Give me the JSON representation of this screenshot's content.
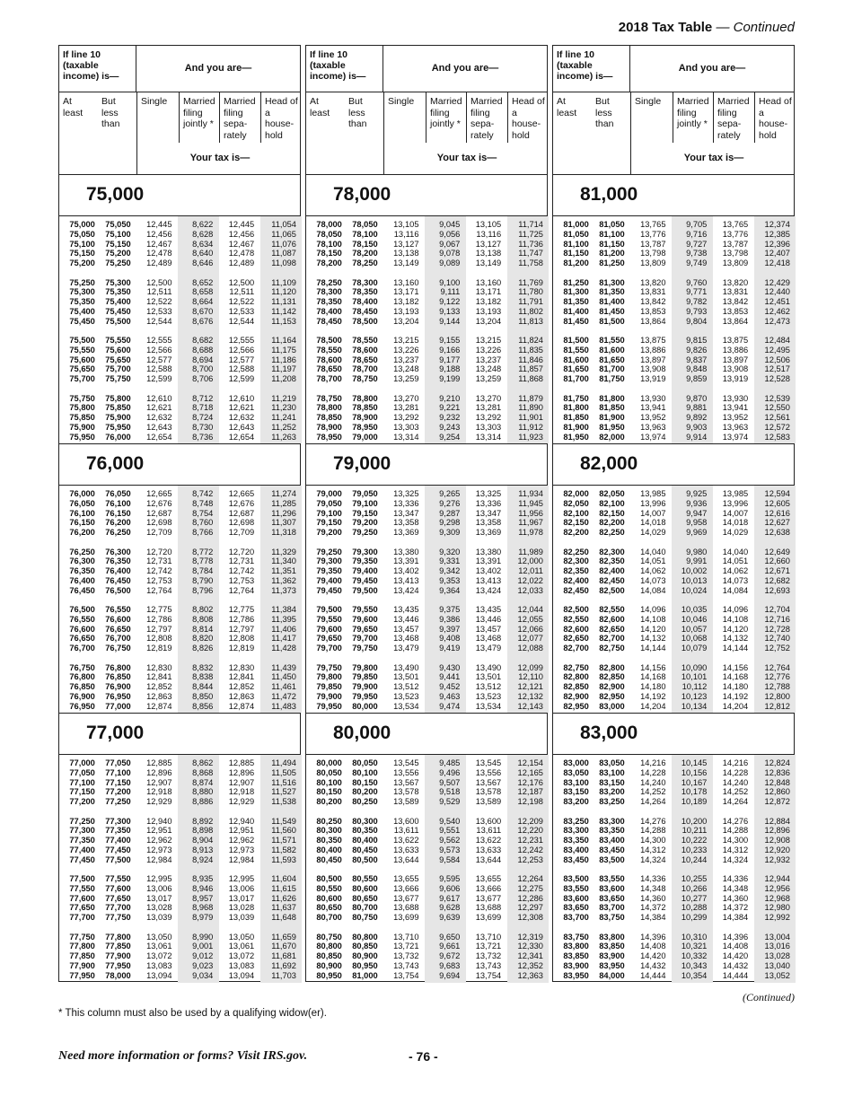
{
  "header": {
    "title": "2018 Tax Table",
    "continued": "— Continued"
  },
  "table_header": {
    "income_label": "If line 10 (taxable income) is—",
    "and_you_are": "And you are—",
    "columns": [
      "At least",
      "But less than",
      "Single",
      "Married filing jointly *",
      "Married filing sepa- rately",
      "Head of a house- hold"
    ],
    "your_tax_is": "Your tax is—"
  },
  "shaded_columns": [
    "Married filing jointly",
    "Head of a household"
  ],
  "shade_color": "#e6e6e6",
  "blocks": [
    {
      "heading": "75,000",
      "single": [
        12445,
        12456,
        12467,
        12478,
        12489,
        12500,
        12511,
        12522,
        12533,
        12544,
        12555,
        12566,
        12577,
        12588,
        12599,
        12610,
        12621,
        12632,
        12643,
        12654
      ],
      "mfj": [
        8622,
        8628,
        8634,
        8640,
        8646,
        8652,
        8658,
        8664,
        8670,
        8676,
        8682,
        8688,
        8694,
        8700,
        8706,
        8712,
        8718,
        8724,
        8730,
        8736
      ],
      "mfs": [
        12445,
        12456,
        12467,
        12478,
        12489,
        12500,
        12511,
        12522,
        12533,
        12544,
        12555,
        12566,
        12577,
        12588,
        12599,
        12610,
        12621,
        12632,
        12643,
        12654
      ],
      "hoh": [
        11054,
        11065,
        11076,
        11087,
        11098,
        11109,
        11120,
        11131,
        11142,
        11153,
        11164,
        11175,
        11186,
        11197,
        11208,
        11219,
        11230,
        11241,
        11252,
        11263
      ]
    },
    {
      "heading": "76,000",
      "single": [
        12665,
        12676,
        12687,
        12698,
        12709,
        12720,
        12731,
        12742,
        12753,
        12764,
        12775,
        12786,
        12797,
        12808,
        12819,
        12830,
        12841,
        12852,
        12863,
        12874
      ],
      "mfj": [
        8742,
        8748,
        8754,
        8760,
        8766,
        8772,
        8778,
        8784,
        8790,
        8796,
        8802,
        8808,
        8814,
        8820,
        8826,
        8832,
        8838,
        8844,
        8850,
        8856
      ],
      "mfs": [
        12665,
        12676,
        12687,
        12698,
        12709,
        12720,
        12731,
        12742,
        12753,
        12764,
        12775,
        12786,
        12797,
        12808,
        12819,
        12830,
        12841,
        12852,
        12863,
        12874
      ],
      "hoh": [
        11274,
        11285,
        11296,
        11307,
        11318,
        11329,
        11340,
        11351,
        11362,
        11373,
        11384,
        11395,
        11406,
        11417,
        11428,
        11439,
        11450,
        11461,
        11472,
        11483
      ]
    },
    {
      "heading": "77,000",
      "single": [
        12885,
        12896,
        12907,
        12918,
        12929,
        12940,
        12951,
        12962,
        12973,
        12984,
        12995,
        13006,
        13017,
        13028,
        13039,
        13050,
        13061,
        13072,
        13083,
        13094
      ],
      "mfj": [
        8862,
        8868,
        8874,
        8880,
        8886,
        8892,
        8898,
        8904,
        8913,
        8924,
        8935,
        8946,
        8957,
        8968,
        8979,
        8990,
        9001,
        9012,
        9023,
        9034
      ],
      "mfs": [
        12885,
        12896,
        12907,
        12918,
        12929,
        12940,
        12951,
        12962,
        12973,
        12984,
        12995,
        13006,
        13017,
        13028,
        13039,
        13050,
        13061,
        13072,
        13083,
        13094
      ],
      "hoh": [
        11494,
        11505,
        11516,
        11527,
        11538,
        11549,
        11560,
        11571,
        11582,
        11593,
        11604,
        11615,
        11626,
        11637,
        11648,
        11659,
        11670,
        11681,
        11692,
        11703
      ]
    },
    {
      "heading": "78,000",
      "single": [
        13105,
        13116,
        13127,
        13138,
        13149,
        13160,
        13171,
        13182,
        13193,
        13204,
        13215,
        13226,
        13237,
        13248,
        13259,
        13270,
        13281,
        13292,
        13303,
        13314
      ],
      "mfj": [
        9045,
        9056,
        9067,
        9078,
        9089,
        9100,
        9111,
        9122,
        9133,
        9144,
        9155,
        9166,
        9177,
        9188,
        9199,
        9210,
        9221,
        9232,
        9243,
        9254
      ],
      "mfs": [
        13105,
        13116,
        13127,
        13138,
        13149,
        13160,
        13171,
        13182,
        13193,
        13204,
        13215,
        13226,
        13237,
        13248,
        13259,
        13270,
        13281,
        13292,
        13303,
        13314
      ],
      "hoh": [
        11714,
        11725,
        11736,
        11747,
        11758,
        11769,
        11780,
        11791,
        11802,
        11813,
        11824,
        11835,
        11846,
        11857,
        11868,
        11879,
        11890,
        11901,
        11912,
        11923
      ]
    },
    {
      "heading": "79,000",
      "single": [
        13325,
        13336,
        13347,
        13358,
        13369,
        13380,
        13391,
        13402,
        13413,
        13424,
        13435,
        13446,
        13457,
        13468,
        13479,
        13490,
        13501,
        13512,
        13523,
        13534
      ],
      "mfj": [
        9265,
        9276,
        9287,
        9298,
        9309,
        9320,
        9331,
        9342,
        9353,
        9364,
        9375,
        9386,
        9397,
        9408,
        9419,
        9430,
        9441,
        9452,
        9463,
        9474
      ],
      "mfs": [
        13325,
        13336,
        13347,
        13358,
        13369,
        13380,
        13391,
        13402,
        13413,
        13424,
        13435,
        13446,
        13457,
        13468,
        13479,
        13490,
        13501,
        13512,
        13523,
        13534
      ],
      "hoh": [
        11934,
        11945,
        11956,
        11967,
        11978,
        11989,
        12000,
        12011,
        12022,
        12033,
        12044,
        12055,
        12066,
        12077,
        12088,
        12099,
        12110,
        12121,
        12132,
        12143
      ]
    },
    {
      "heading": "80,000",
      "single": [
        13545,
        13556,
        13567,
        13578,
        13589,
        13600,
        13611,
        13622,
        13633,
        13644,
        13655,
        13666,
        13677,
        13688,
        13699,
        13710,
        13721,
        13732,
        13743,
        13754
      ],
      "mfj": [
        9485,
        9496,
        9507,
        9518,
        9529,
        9540,
        9551,
        9562,
        9573,
        9584,
        9595,
        9606,
        9617,
        9628,
        9639,
        9650,
        9661,
        9672,
        9683,
        9694
      ],
      "mfs": [
        13545,
        13556,
        13567,
        13578,
        13589,
        13600,
        13611,
        13622,
        13633,
        13644,
        13655,
        13666,
        13677,
        13688,
        13699,
        13710,
        13721,
        13732,
        13743,
        13754
      ],
      "hoh": [
        12154,
        12165,
        12176,
        12187,
        12198,
        12209,
        12220,
        12231,
        12242,
        12253,
        12264,
        12275,
        12286,
        12297,
        12308,
        12319,
        12330,
        12341,
        12352,
        12363
      ]
    },
    {
      "heading": "81,000",
      "single": [
        13765,
        13776,
        13787,
        13798,
        13809,
        13820,
        13831,
        13842,
        13853,
        13864,
        13875,
        13886,
        13897,
        13908,
        13919,
        13930,
        13941,
        13952,
        13963,
        13974
      ],
      "mfj": [
        9705,
        9716,
        9727,
        9738,
        9749,
        9760,
        9771,
        9782,
        9793,
        9804,
        9815,
        9826,
        9837,
        9848,
        9859,
        9870,
        9881,
        9892,
        9903,
        9914
      ],
      "mfs": [
        13765,
        13776,
        13787,
        13798,
        13809,
        13820,
        13831,
        13842,
        13853,
        13864,
        13875,
        13886,
        13897,
        13908,
        13919,
        13930,
        13941,
        13952,
        13963,
        13974
      ],
      "hoh": [
        12374,
        12385,
        12396,
        12407,
        12418,
        12429,
        12440,
        12451,
        12462,
        12473,
        12484,
        12495,
        12506,
        12517,
        12528,
        12539,
        12550,
        12561,
        12572,
        12583
      ]
    },
    {
      "heading": "82,000",
      "single": [
        13985,
        13996,
        14007,
        14018,
        14029,
        14040,
        14051,
        14062,
        14073,
        14084,
        14096,
        14108,
        14120,
        14132,
        14144,
        14156,
        14168,
        14180,
        14192,
        14204
      ],
      "mfj": [
        9925,
        9936,
        9947,
        9958,
        9969,
        9980,
        9991,
        10002,
        10013,
        10024,
        10035,
        10046,
        10057,
        10068,
        10079,
        10090,
        10101,
        10112,
        10123,
        10134
      ],
      "mfs": [
        13985,
        13996,
        14007,
        14018,
        14029,
        14040,
        14051,
        14062,
        14073,
        14084,
        14096,
        14108,
        14120,
        14132,
        14144,
        14156,
        14168,
        14180,
        14192,
        14204
      ],
      "hoh": [
        12594,
        12605,
        12616,
        12627,
        12638,
        12649,
        12660,
        12671,
        12682,
        12693,
        12704,
        12716,
        12728,
        12740,
        12752,
        12764,
        12776,
        12788,
        12800,
        12812
      ]
    },
    {
      "heading": "83,000",
      "single": [
        14216,
        14228,
        14240,
        14252,
        14264,
        14276,
        14288,
        14300,
        14312,
        14324,
        14336,
        14348,
        14360,
        14372,
        14384,
        14396,
        14408,
        14420,
        14432,
        14444
      ],
      "mfj": [
        10145,
        10156,
        10167,
        10178,
        10189,
        10200,
        10211,
        10222,
        10233,
        10244,
        10255,
        10266,
        10277,
        10288,
        10299,
        10310,
        10321,
        10332,
        10343,
        10354
      ],
      "mfs": [
        14216,
        14228,
        14240,
        14252,
        14264,
        14276,
        14288,
        14300,
        14312,
        14324,
        14336,
        14348,
        14360,
        14372,
        14384,
        14396,
        14408,
        14420,
        14432,
        14444
      ],
      "hoh": [
        12824,
        12836,
        12848,
        12860,
        12872,
        12884,
        12896,
        12908,
        12920,
        12932,
        12944,
        12956,
        12968,
        12980,
        12992,
        13004,
        13016,
        13028,
        13040,
        13052
      ]
    }
  ],
  "income_row_step": 50,
  "footer": {
    "continued": "(Continued)",
    "note": "* This column must also be used by a qualifying widow(er).",
    "more_info": "Need more information or forms? Visit IRS.gov.",
    "page_number": "- 76 -"
  }
}
